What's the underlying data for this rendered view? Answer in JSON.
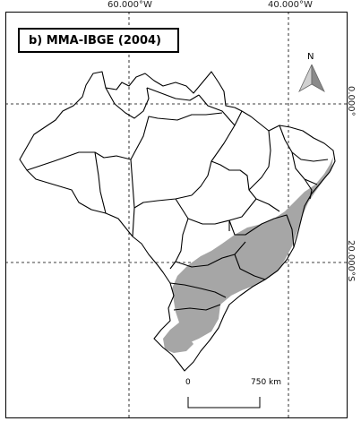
{
  "title": "b) MMA-IBGE (2004)",
  "longitudes": [
    "60.000°W",
    "40.000°W"
  ],
  "latitudes": [
    "0.000°",
    "20.000°S"
  ],
  "north_arrow": {
    "label": "N",
    "icon": "north-arrow-icon"
  },
  "scale_bar": {
    "start": "0",
    "end": "750 km"
  },
  "colors": {
    "highlight_region": "#a6a6a6",
    "border": "#000000",
    "grid": "#000000"
  }
}
